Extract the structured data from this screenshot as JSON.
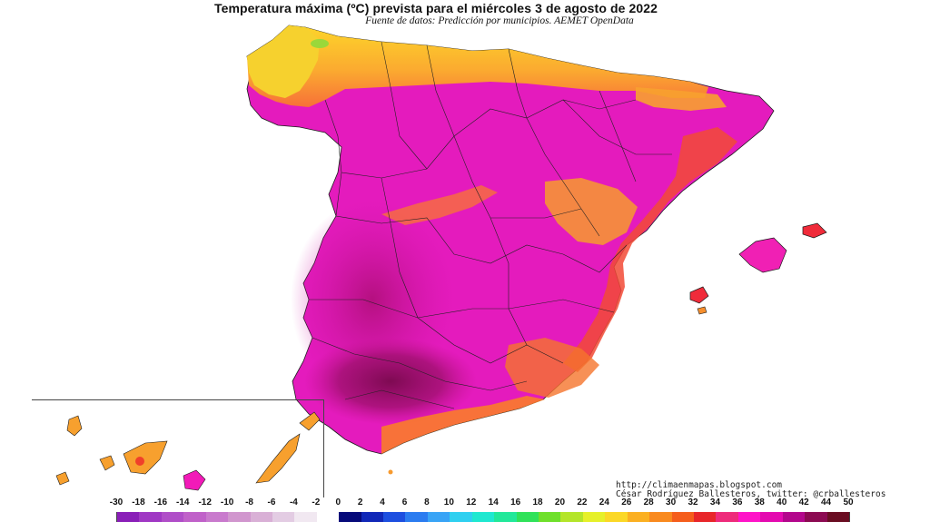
{
  "title": "Temperatura máxima (ºC) prevista para el miércoles 3 de agosto de 2022",
  "subtitle": "Fuente de datos: Predicción por municipios. AEMET OpenData",
  "credits": {
    "blog": "http://climaenmapas.blogspot.com",
    "author": "César Rodríguez Ballesteros, twitter: @crballesteros"
  },
  "legend": {
    "ticks": [
      "-30",
      "-18",
      "-16",
      "-14",
      "-12",
      "-10",
      "-8",
      "-6",
      "-4",
      "-2",
      "0",
      "2",
      "4",
      "6",
      "8",
      "10",
      "12",
      "14",
      "16",
      "18",
      "20",
      "22",
      "24",
      "26",
      "28",
      "30",
      "32",
      "34",
      "36",
      "38",
      "40",
      "42",
      "44",
      "50"
    ],
    "colors": [
      "#8a1fb8",
      "#a038c4",
      "#b04ec8",
      "#c061c9",
      "#c97acd",
      "#d196ce",
      "#d9b0d6",
      "#e3cce3",
      "#f1e8f1",
      "#ffffff",
      "#060a7a",
      "#1128b8",
      "#1d4fe0",
      "#2b7cf0",
      "#39a4f6",
      "#2fd0f0",
      "#1fe8d0",
      "#22e89a",
      "#30e25a",
      "#6fe02b",
      "#b4e52a",
      "#e6f02a",
      "#fbd827",
      "#fbb022",
      "#f98a1f",
      "#f55e1c",
      "#e8262a",
      "#ee2b7b",
      "#ff14c8",
      "#e40ab0",
      "#b3078c",
      "#8c0a52",
      "#6a0d22"
    ]
  },
  "map": {
    "regions": [
      {
        "name": "north-coast",
        "color": "#f7c92a"
      },
      {
        "name": "north-transition",
        "color": "#fb8a35"
      },
      {
        "name": "interior",
        "color": "#ec1ac0"
      },
      {
        "name": "southwest-hot",
        "color": "#c3138f"
      },
      {
        "name": "guadalquivir",
        "color": "#9a0a6a"
      },
      {
        "name": "east-coast",
        "color": "#f3553a"
      },
      {
        "name": "mountain-relief",
        "color": "#f7a02e"
      }
    ],
    "inset": "canary-islands",
    "islands": [
      "balearic-islands",
      "canary-islands"
    ]
  }
}
